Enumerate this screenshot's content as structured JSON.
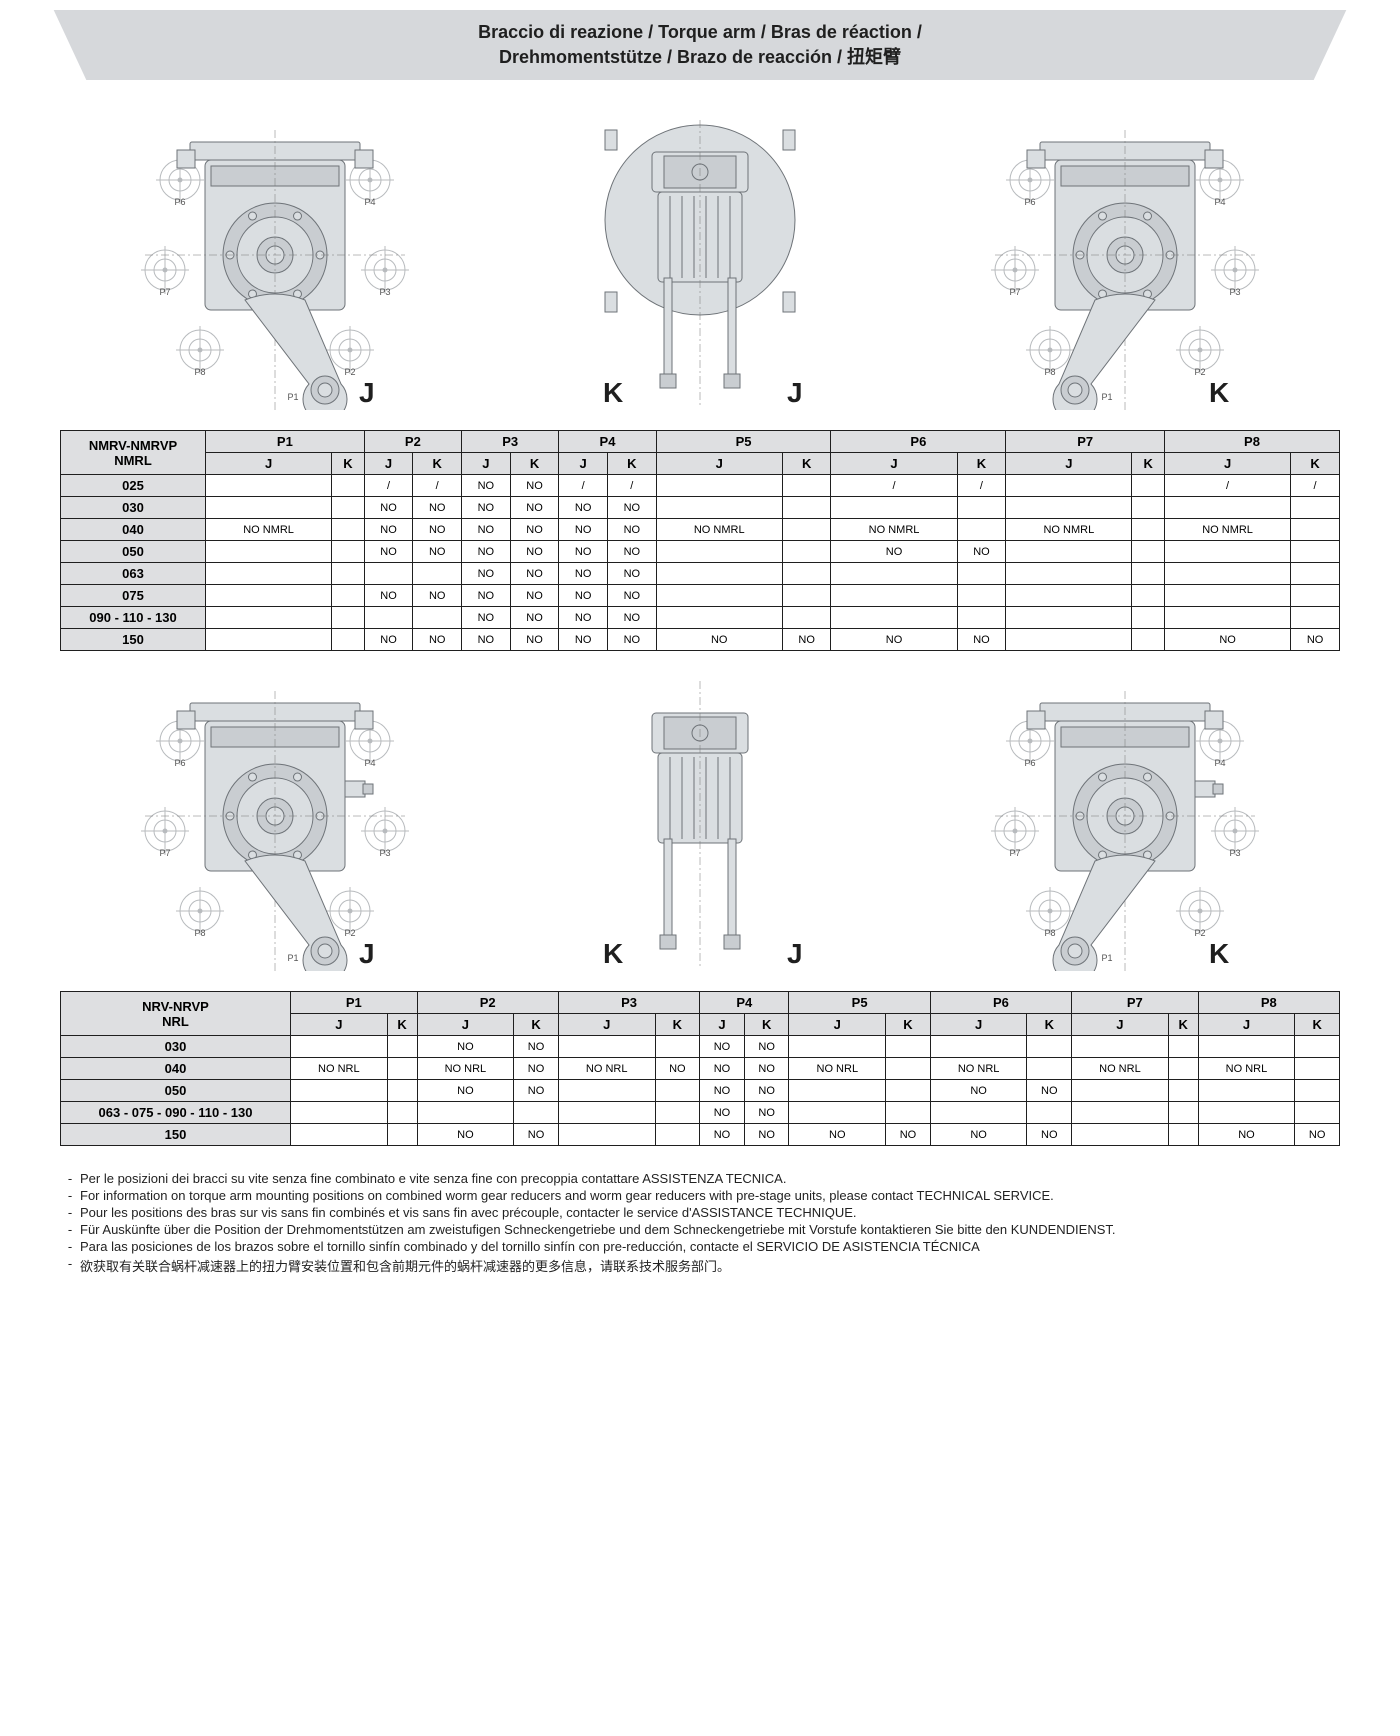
{
  "banner": {
    "line1": "Braccio di reazione / Torque arm / Bras de réaction /",
    "line2": "Drehmomentstütze / Brazo de reacción / 扭矩臂"
  },
  "colors": {
    "banner_bg": "#d6d8db",
    "table_header_bg": "#dedfe1",
    "border": "#1f1f1f",
    "tech_fill": "#dadee1",
    "tech_stroke": "#6e7378",
    "ghost_stroke": "#b8bbbe"
  },
  "fig_labels": {
    "p1": "P1",
    "p2": "P2",
    "p3": "P3",
    "p4": "P4",
    "p5": "P5",
    "p6": "P6",
    "p7": "P7",
    "p8": "P8",
    "j": "J",
    "k": "K"
  },
  "table1": {
    "title1": "NMRV-NMRVP",
    "title2": "NMRL",
    "pcols": [
      "P1",
      "P2",
      "P3",
      "P4",
      "P5",
      "P6",
      "P7",
      "P8"
    ],
    "jk": [
      "J",
      "K"
    ],
    "rows": [
      {
        "h": "025",
        "c": [
          "",
          "",
          "/",
          "/",
          "NO",
          "NO",
          "/",
          "/",
          "",
          "",
          "/",
          "/",
          "",
          "",
          "/",
          "/"
        ]
      },
      {
        "h": "030",
        "c": [
          "",
          "",
          "NO",
          "NO",
          "NO",
          "NO",
          "NO",
          "NO",
          "",
          "",
          "",
          "",
          "",
          "",
          "",
          ""
        ]
      },
      {
        "h": "040",
        "c": [
          "NO NMRL",
          "",
          "NO",
          "NO",
          "NO",
          "NO",
          "NO",
          "NO",
          "NO NMRL",
          "",
          "NO NMRL",
          "",
          "NO NMRL",
          "",
          "NO NMRL",
          ""
        ]
      },
      {
        "h": "050",
        "c": [
          "",
          "",
          "NO",
          "NO",
          "NO",
          "NO",
          "NO",
          "NO",
          "",
          "",
          "NO",
          "NO",
          "",
          "",
          "",
          ""
        ]
      },
      {
        "h": "063",
        "c": [
          "",
          "",
          "",
          "",
          "NO",
          "NO",
          "NO",
          "NO",
          "",
          "",
          "",
          "",
          "",
          "",
          "",
          ""
        ]
      },
      {
        "h": "075",
        "c": [
          "",
          "",
          "NO",
          "NO",
          "NO",
          "NO",
          "NO",
          "NO",
          "",
          "",
          "",
          "",
          "",
          "",
          "",
          ""
        ]
      },
      {
        "h": "090 - 110 - 130",
        "c": [
          "",
          "",
          "",
          "",
          "NO",
          "NO",
          "NO",
          "NO",
          "",
          "",
          "",
          "",
          "",
          "",
          "",
          ""
        ]
      },
      {
        "h": "150",
        "c": [
          "",
          "",
          "NO",
          "NO",
          "NO",
          "NO",
          "NO",
          "NO",
          "NO",
          "NO",
          "NO",
          "NO",
          "",
          "",
          "NO",
          "NO"
        ]
      }
    ]
  },
  "table2": {
    "title1": "NRV-NRVP",
    "title2": "NRL",
    "pcols": [
      "P1",
      "P2",
      "P3",
      "P4",
      "P5",
      "P6",
      "P7",
      "P8"
    ],
    "jk": [
      "J",
      "K"
    ],
    "rows": [
      {
        "h": "030",
        "c": [
          "",
          "",
          "NO",
          "NO",
          "",
          "",
          "NO",
          "NO",
          "",
          "",
          "",
          "",
          "",
          "",
          "",
          ""
        ]
      },
      {
        "h": "040",
        "c": [
          "NO NRL",
          "",
          "NO NRL",
          "NO",
          "NO NRL",
          "NO",
          "NO",
          "NO",
          "NO NRL",
          "",
          "NO NRL",
          "",
          "NO NRL",
          "",
          "NO NRL",
          ""
        ]
      },
      {
        "h": "050",
        "c": [
          "",
          "",
          "NO",
          "NO",
          "",
          "",
          "NO",
          "NO",
          "",
          "",
          "NO",
          "NO",
          "",
          "",
          "",
          ""
        ]
      },
      {
        "h": "063 - 075 - 090 - 110 - 130",
        "c": [
          "",
          "",
          "",
          "",
          "",
          "",
          "NO",
          "NO",
          "",
          "",
          "",
          "",
          "",
          "",
          "",
          ""
        ]
      },
      {
        "h": "150",
        "c": [
          "",
          "",
          "NO",
          "NO",
          "",
          "",
          "NO",
          "NO",
          "NO",
          "NO",
          "NO",
          "NO",
          "",
          "",
          "NO",
          "NO"
        ]
      }
    ]
  },
  "notes": [
    "Per le posizioni dei bracci su vite senza fine combinato e vite senza fine con precoppia contattare ASSISTENZA TECNICA.",
    "For information on torque arm mounting positions on combined worm gear reducers and worm gear reducers with pre-stage units, please contact TECHNICAL SERVICE.",
    "Pour les positions des bras sur vis sans fin combinés et vis sans fin avec précouple, contacter le service d'ASSISTANCE TECHNIQUE.",
    "Für Auskünfte über die Position der Drehmomentstützen am zweistufigen Schneckengetriebe und dem Schneckengetriebe mit Vorstufe kontaktieren Sie bitte den KUNDENDIENST.",
    "Para las posiciones de los brazos sobre el tornillo sinfín combinado y del tornillo sinfín con pre-reducción, contacte el SERVICIO DE ASISTENCIA TÉCNICA",
    "欲获取有关联合蜗杆减速器上的扭力臂安装位置和包含前期元件的蜗杆减速器的更多信息，请联系技术服务部门。"
  ]
}
